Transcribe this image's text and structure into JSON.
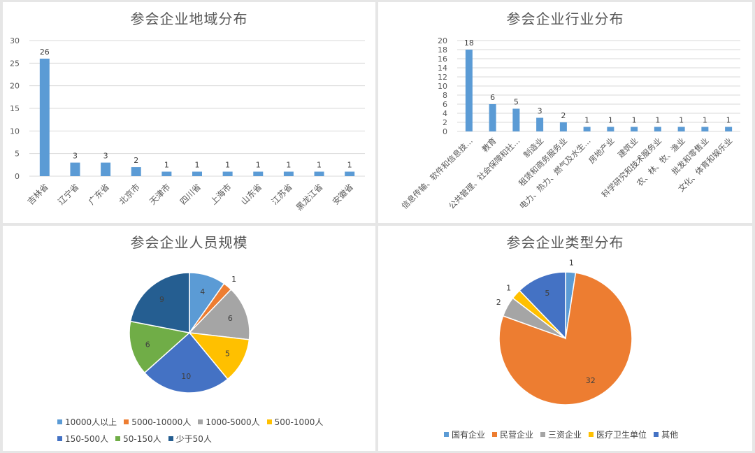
{
  "colors": {
    "bar": "#5b9bd5",
    "grid": "#d9d9d9",
    "axis_text": "#595959"
  },
  "chart_data": [
    {
      "type": "bar",
      "title": "参会企业地域分布",
      "categories": [
        "吉林省",
        "辽宁省",
        "广东省",
        "北京市",
        "天津市",
        "四川省",
        "上海市",
        "山东省",
        "江苏省",
        "黑龙江省",
        "安徽省"
      ],
      "values": [
        26,
        3,
        3,
        2,
        1,
        1,
        1,
        1,
        1,
        1,
        1
      ],
      "ylim": [
        0,
        30
      ],
      "yticks": [
        0,
        5,
        10,
        15,
        20,
        25,
        30
      ],
      "grid": true,
      "data_labels": true
    },
    {
      "type": "bar",
      "title": "参会企业行业分布",
      "categories": [
        "信息传输、软件和信息技…",
        "教育",
        "公共管理、社会保障和社…",
        "制造业",
        "租赁和商务服务业",
        "电力、热力、燃气及水生…",
        "房地产业",
        "建筑业",
        "科学研究和技术服务业",
        "农、林、牧、渔业",
        "批发和零售业",
        "文化、体育和娱乐业"
      ],
      "values": [
        18,
        6,
        5,
        3,
        2,
        1,
        1,
        1,
        1,
        1,
        1,
        1
      ],
      "ylim": [
        0,
        20
      ],
      "yticks": [
        0,
        2,
        4,
        6,
        8,
        10,
        12,
        14,
        16,
        18,
        20
      ],
      "grid": true,
      "data_labels": true
    },
    {
      "type": "pie",
      "title": "参会企业人员规模",
      "slices": [
        {
          "label": "10000人以上",
          "value": 4,
          "color": "#5b9bd5"
        },
        {
          "label": "5000-10000人",
          "value": 1,
          "color": "#ed7d31"
        },
        {
          "label": "1000-5000人",
          "value": 6,
          "color": "#a5a5a5"
        },
        {
          "label": "500-1000人",
          "value": 5,
          "color": "#ffc000"
        },
        {
          "label": "150-500人",
          "value": 10,
          "color": "#4472c4"
        },
        {
          "label": "50-150人",
          "value": 6,
          "color": "#70ad47"
        },
        {
          "label": "少于50人",
          "value": 9,
          "color": "#255e91"
        }
      ],
      "legend_position": "bottom"
    },
    {
      "type": "pie",
      "title": "参会企业类型分布",
      "slices": [
        {
          "label": "国有企业",
          "value": 1,
          "color": "#5b9bd5"
        },
        {
          "label": "民营企业",
          "value": 32,
          "color": "#ed7d31"
        },
        {
          "label": "三资企业",
          "value": 2,
          "color": "#a5a5a5"
        },
        {
          "label": "医疗卫生单位",
          "value": 1,
          "color": "#ffc000"
        },
        {
          "label": "其他",
          "value": 5,
          "color": "#4472c4"
        }
      ],
      "legend_position": "bottom"
    }
  ]
}
